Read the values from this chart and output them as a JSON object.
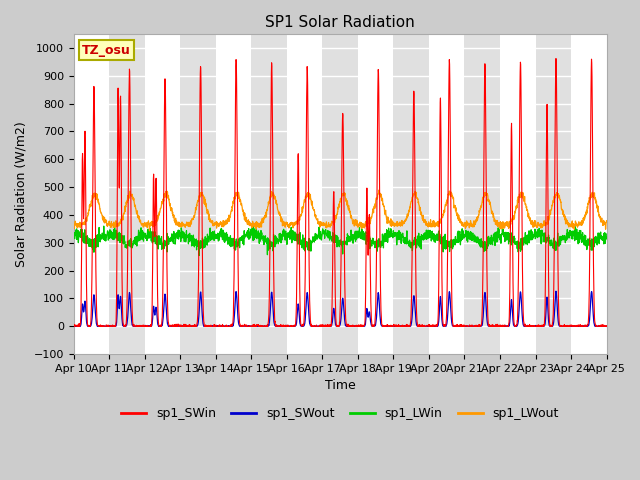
{
  "title": "SP1 Solar Radiation",
  "xlabel": "Time",
  "ylabel": "Solar Radiation (W/m2)",
  "ylim": [
    -100,
    1050
  ],
  "n_days": 15,
  "fig_facecolor": "#cccccc",
  "plot_facecolor": "#ffffff",
  "stripe_color": "#e0e0e0",
  "tz_label": "TZ_osu",
  "x_tick_labels": [
    "Apr 10",
    "Apr 11",
    "Apr 12",
    "Apr 13",
    "Apr 14",
    "Apr 15",
    "Apr 16",
    "Apr 17",
    "Apr 18",
    "Apr 19",
    "Apr 20",
    "Apr 21",
    "Apr 22",
    "Apr 23",
    "Apr 24",
    "Apr 25"
  ],
  "yticks": [
    -100,
    0,
    100,
    200,
    300,
    400,
    500,
    600,
    700,
    800,
    900,
    1000
  ],
  "colors": {
    "SWin": "#ff0000",
    "SWout": "#0000cc",
    "LWin": "#00cc00",
    "LWout": "#ff9900"
  },
  "legend_labels": [
    "sp1_SWin",
    "sp1_SWout",
    "sp1_LWin",
    "sp1_LWout"
  ],
  "grid_color": "#ffffff",
  "title_fontsize": 11,
  "axis_label_fontsize": 9,
  "tick_fontsize": 8
}
